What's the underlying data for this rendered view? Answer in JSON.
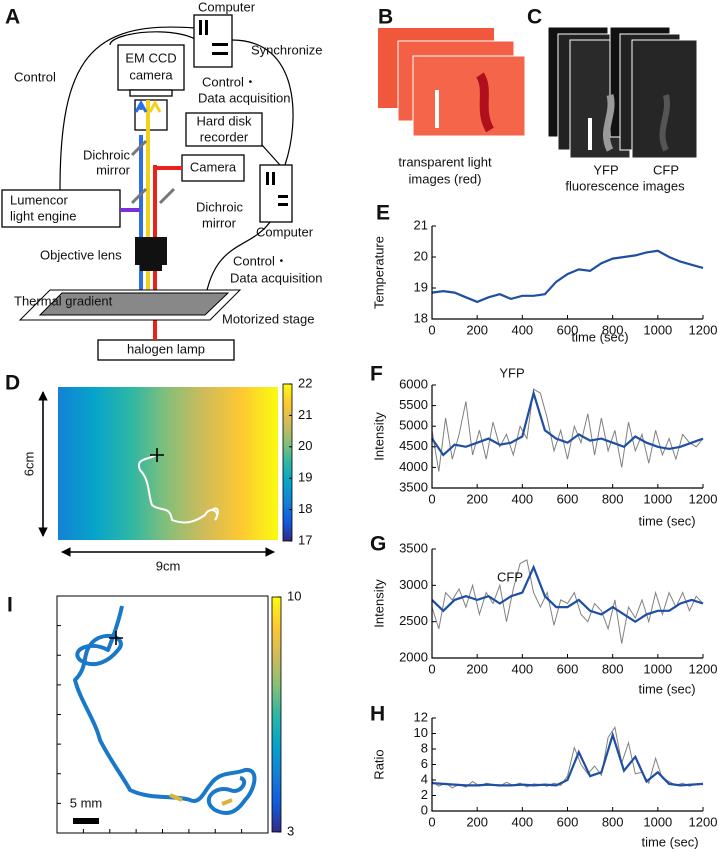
{
  "panel_labels": [
    "A",
    "B",
    "C",
    "D",
    "E",
    "F",
    "G",
    "H",
    "I"
  ],
  "diagram": {
    "computer_top": "Computer",
    "synchronize": "Synchronize",
    "control": "Control",
    "em_ccd": [
      "EM CCD",
      "camera"
    ],
    "control_top": [
      "Control・",
      "Data acquisition"
    ],
    "hard_disk": [
      "Hard disk",
      "recorder"
    ],
    "dichroic_left": [
      "Dichroic",
      "mirror"
    ],
    "camera": "Camera",
    "lumencor": [
      "Lumencor",
      "light engine"
    ],
    "dichroic_right": [
      "Dichroic",
      "mirror"
    ],
    "computer_right": "Computer",
    "objective": "Objective lens",
    "control_right": [
      "Control・",
      "Data acquisition"
    ],
    "thermal": "Thermal gradient",
    "stage": "Motorized stage",
    "halogen": "halogen lamp"
  },
  "panel_b": {
    "caption": [
      "transparent light",
      "images (red)"
    ]
  },
  "panel_c": {
    "channels": [
      "YFP",
      "CFP"
    ],
    "caption": "fluorescence images"
  },
  "chart_data": [
    {
      "type": "line",
      "ylabel": "Temperature",
      "xlabel": "time (sec)",
      "xlim": [
        0,
        1200
      ],
      "ylim": [
        18,
        21
      ],
      "xticks": [
        0,
        200,
        400,
        600,
        800,
        1000,
        1200
      ],
      "yticks": [
        18,
        19,
        20,
        21
      ],
      "series": [
        {
          "color": "#1f4fa3",
          "x": [
            0,
            50,
            100,
            150,
            200,
            250,
            300,
            350,
            400,
            450,
            500,
            550,
            600,
            650,
            700,
            750,
            800,
            850,
            900,
            950,
            1000,
            1050,
            1100,
            1150,
            1200
          ],
          "values": [
            18.85,
            18.9,
            18.85,
            18.7,
            18.55,
            18.7,
            18.8,
            18.65,
            18.75,
            18.75,
            18.8,
            19.2,
            19.45,
            19.6,
            19.55,
            19.8,
            19.95,
            20.0,
            20.05,
            20.15,
            20.2,
            20.0,
            19.85,
            19.75,
            19.65
          ]
        }
      ]
    },
    {
      "type": "line",
      "title": "YFP",
      "ylabel": "Intensity",
      "xlabel": "time (sec)",
      "xlim": [
        0,
        1200
      ],
      "ylim": [
        3500,
        6000
      ],
      "xticks": [
        0,
        200,
        400,
        600,
        800,
        1000,
        1200
      ],
      "yticks": [
        3500,
        4000,
        4500,
        5000,
        5500,
        6000
      ],
      "series": [
        {
          "color": "#808080",
          "x": [
            0,
            30,
            60,
            90,
            120,
            150,
            180,
            210,
            240,
            270,
            300,
            330,
            360,
            390,
            420,
            450,
            480,
            510,
            540,
            570,
            600,
            630,
            660,
            690,
            720,
            750,
            780,
            810,
            840,
            870,
            900,
            930,
            960,
            990,
            1020,
            1050,
            1080,
            1110,
            1140,
            1170,
            1200
          ],
          "values": [
            4900,
            3900,
            5200,
            4200,
            4800,
            5600,
            4300,
            4900,
            4200,
            5100,
            4500,
            4800,
            4300,
            5000,
            4700,
            5900,
            5800,
            5200,
            4400,
            4900,
            4200,
            5000,
            4600,
            5300,
            4300,
            5200,
            4400,
            4900,
            4000,
            5100,
            4400,
            4800,
            4100,
            4900,
            4300,
            4700,
            4200,
            4800,
            4600,
            4500,
            4700
          ]
        },
        {
          "color": "#1f4fa3",
          "x": [
            0,
            50,
            100,
            150,
            200,
            250,
            300,
            350,
            400,
            450,
            500,
            550,
            600,
            650,
            700,
            750,
            800,
            850,
            900,
            950,
            1000,
            1050,
            1100,
            1150,
            1200
          ],
          "values": [
            4700,
            4300,
            4550,
            4500,
            4600,
            4700,
            4550,
            4600,
            4750,
            5800,
            4900,
            4700,
            4600,
            4800,
            4650,
            4700,
            4600,
            4500,
            4750,
            4600,
            4500,
            4450,
            4500,
            4600,
            4700
          ]
        }
      ]
    },
    {
      "type": "line",
      "title": "CFP",
      "ylabel": "Intensity",
      "xlabel": "time (sec)",
      "xlim": [
        0,
        1200
      ],
      "ylim": [
        2000,
        3500
      ],
      "xticks": [
        0,
        200,
        400,
        600,
        800,
        1000,
        1200
      ],
      "yticks": [
        2000,
        2500,
        3000,
        3500
      ],
      "series": [
        {
          "color": "#808080",
          "x": [
            0,
            30,
            60,
            90,
            120,
            150,
            180,
            210,
            240,
            270,
            300,
            330,
            360,
            390,
            420,
            450,
            480,
            510,
            540,
            570,
            600,
            630,
            660,
            690,
            720,
            750,
            780,
            810,
            840,
            870,
            900,
            930,
            960,
            990,
            1020,
            1050,
            1080,
            1110,
            1140,
            1170,
            1200
          ],
          "values": [
            2700,
            2400,
            2900,
            2800,
            2950,
            2700,
            3000,
            2600,
            2900,
            2750,
            3000,
            2500,
            2950,
            3300,
            3350,
            2900,
            2700,
            2900,
            2450,
            2800,
            2750,
            2900,
            2600,
            2500,
            2750,
            2650,
            2400,
            2800,
            2200,
            2700,
            2550,
            2800,
            2500,
            2900,
            2600,
            2900,
            2700,
            2900,
            2650,
            2850,
            2750
          ]
        },
        {
          "color": "#1f4fa3",
          "x": [
            0,
            50,
            100,
            150,
            200,
            250,
            300,
            350,
            400,
            450,
            500,
            550,
            600,
            650,
            700,
            750,
            800,
            850,
            900,
            950,
            1000,
            1050,
            1100,
            1150,
            1200
          ],
          "values": [
            2800,
            2650,
            2800,
            2850,
            2800,
            2850,
            2750,
            2850,
            2900,
            3250,
            2850,
            2700,
            2700,
            2800,
            2650,
            2600,
            2700,
            2600,
            2500,
            2600,
            2650,
            2650,
            2750,
            2800,
            2750
          ]
        }
      ]
    },
    {
      "type": "line",
      "ylabel": "Ratio",
      "xlabel": "time (sec)",
      "xlim": [
        0,
        1200
      ],
      "ylim": [
        0,
        12
      ],
      "xticks": [
        0,
        200,
        400,
        600,
        800,
        1000,
        1200
      ],
      "yticks": [
        0,
        2,
        4,
        6,
        8,
        10,
        12
      ],
      "series": [
        {
          "color": "#808080",
          "x": [
            0,
            30,
            60,
            90,
            120,
            150,
            180,
            210,
            240,
            270,
            300,
            330,
            360,
            390,
            420,
            450,
            480,
            510,
            540,
            570,
            600,
            630,
            660,
            690,
            720,
            750,
            780,
            810,
            840,
            870,
            900,
            930,
            960,
            990,
            1020,
            1050,
            1080,
            1110,
            1140,
            1170,
            1200
          ],
          "values": [
            3.8,
            3.2,
            3.6,
            3.0,
            3.4,
            3.1,
            3.8,
            3.2,
            3.6,
            3.4,
            3.2,
            3.7,
            3.3,
            3.6,
            3.1,
            3.5,
            3.4,
            3.2,
            3.6,
            3.3,
            4.5,
            8.2,
            6.0,
            4.8,
            5.8,
            4.6,
            9.5,
            10.8,
            6.2,
            8.8,
            4.8,
            5.0,
            3.6,
            6.8,
            4.2,
            3.8,
            3.3,
            3.6,
            3.2,
            3.5,
            3.4
          ]
        },
        {
          "color": "#1f4fa3",
          "x": [
            0,
            50,
            100,
            150,
            200,
            250,
            300,
            350,
            400,
            450,
            500,
            550,
            600,
            650,
            700,
            750,
            800,
            850,
            900,
            950,
            1000,
            1050,
            1100,
            1150,
            1200
          ],
          "values": [
            3.6,
            3.5,
            3.4,
            3.3,
            3.3,
            3.4,
            3.3,
            3.3,
            3.4,
            3.3,
            3.4,
            3.3,
            4.0,
            7.6,
            4.5,
            5.0,
            9.8,
            5.2,
            7.0,
            3.8,
            5.0,
            3.5,
            3.3,
            3.4,
            3.5
          ]
        }
      ]
    },
    {
      "type": "heatmap",
      "zlim": [
        17,
        22
      ],
      "colorbar_ticks": [
        17,
        18,
        19,
        20,
        21,
        22
      ],
      "height_label": "6cm",
      "width_label": "9cm",
      "colormap": [
        "#352a87",
        "#0f5cdd",
        "#1481d6",
        "#06a4ca",
        "#2eb7a4",
        "#87bf77",
        "#d1bb59",
        "#fec832",
        "#f9fb0e"
      ]
    },
    {
      "type": "trajectory",
      "zlim": [
        3,
        10
      ],
      "colorbar_ticks": [
        3,
        10
      ],
      "scale_label": "5 mm",
      "colormap": [
        "#352a87",
        "#0f5cdd",
        "#1481d6",
        "#06a4ca",
        "#2eb7a4",
        "#87bf77",
        "#d1bb59",
        "#fec832",
        "#f9fb0e"
      ]
    }
  ]
}
